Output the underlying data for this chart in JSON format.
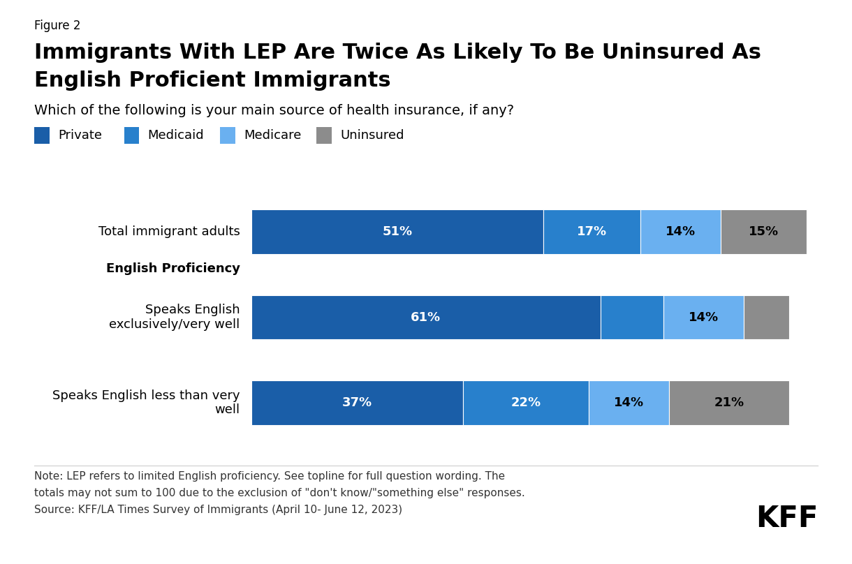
{
  "figure_label": "Figure 2",
  "title_line1": "Immigrants With LEP Are Twice As Likely To Be Uninsured As",
  "title_line2": "English Proficient Immigrants",
  "subtitle": "Which of the following is your main source of health insurance, if any?",
  "categories": [
    "Total immigrant adults",
    "Speaks English\nexclusively/very well",
    "Speaks English less than very\nwell"
  ],
  "section_header": "English Proficiency",
  "data": {
    "Private": [
      51,
      61,
      37
    ],
    "Medicaid": [
      17,
      11,
      22
    ],
    "Medicare": [
      14,
      14,
      14
    ],
    "Uninsured": [
      15,
      8,
      21
    ]
  },
  "labels": {
    "Private": [
      "51%",
      "61%",
      "37%"
    ],
    "Medicaid": [
      "17%",
      "",
      "22%"
    ],
    "Medicare": [
      "14%",
      "14%",
      "14%"
    ],
    "Uninsured": [
      "15%",
      "",
      "21%"
    ]
  },
  "label_colors": {
    "Private": "white",
    "Medicaid": "white",
    "Medicare": "black",
    "Uninsured": "black"
  },
  "colors": {
    "Private": "#1a5ea8",
    "Medicaid": "#2880cc",
    "Medicare": "#6ab0f0",
    "Uninsured": "#8c8c8c"
  },
  "legend_order": [
    "Private",
    "Medicaid",
    "Medicare",
    "Uninsured"
  ],
  "note_line1": "Note: LEP refers to limited English proficiency. See topline for full question wording. The",
  "note_line2": "totals may not sum to 100 due to the exclusion of \"don't know/\"something else\" responses.",
  "note_line3": "Source: KFF/LA Times Survey of Immigrants (April 10- June 12, 2023)",
  "background_color": "#ffffff"
}
